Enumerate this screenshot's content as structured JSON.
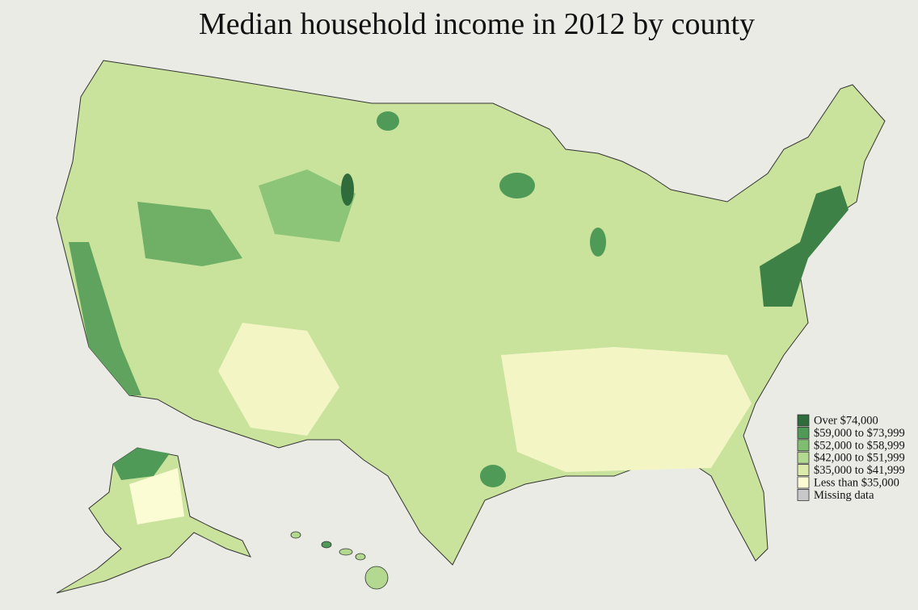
{
  "title": "Median household income in 2012 by county",
  "legend": [
    {
      "label": "Over $74,000",
      "color": "#2f6b3b"
    },
    {
      "label": "$59,000 to $73,999",
      "color": "#4f9a57"
    },
    {
      "label": "$52,000 to $58,999",
      "color": "#80bd70"
    },
    {
      "label": "$42,000 to $51,999",
      "color": "#b3d88f"
    },
    {
      "label": "$35,000 to $41,999",
      "color": "#dcebaa"
    },
    {
      "label": "Less than $35,000",
      "color": "#fbfbd4"
    },
    {
      "label": "Missing data",
      "color": "#c8c8c8"
    }
  ]
}
